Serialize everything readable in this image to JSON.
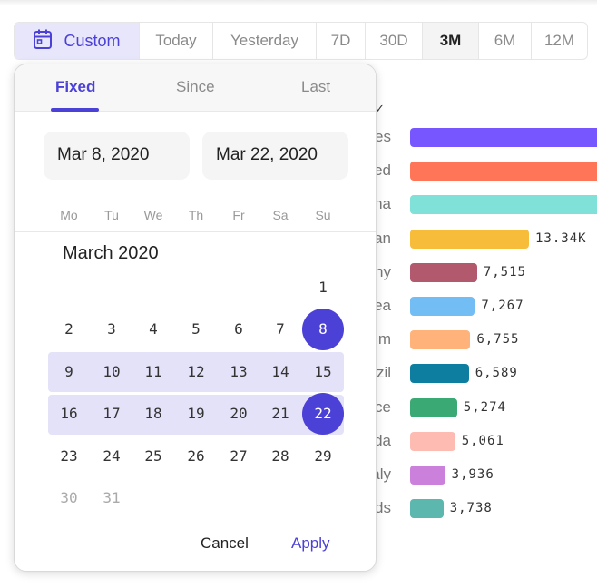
{
  "toolbar": {
    "custom_label": "Custom",
    "icon": "calendar-icon",
    "ranges": [
      {
        "label": "Today",
        "active": false
      },
      {
        "label": "Yesterday",
        "active": false
      },
      {
        "label": "7D",
        "active": false
      },
      {
        "label": "30D",
        "active": false
      },
      {
        "label": "3M",
        "active": true
      },
      {
        "label": "6M",
        "active": false
      },
      {
        "label": "12M",
        "active": false
      }
    ]
  },
  "chart_data": {
    "type": "bar",
    "orientation": "horizontal",
    "categories": [
      "…es",
      "…ed",
      "…na",
      "…an",
      "…ny",
      "…ea",
      "…m",
      "…zil",
      "…ce",
      "…da",
      "…aly",
      "…ds"
    ],
    "visible_label_fragments": [
      "es",
      "ed",
      "na",
      "an",
      "ny",
      "ea",
      "m",
      "zil",
      "ce",
      "da",
      "aly",
      "ds"
    ],
    "values": [
      null,
      null,
      null,
      13340,
      7515,
      7267,
      6755,
      6589,
      5274,
      5061,
      3936,
      3738
    ],
    "value_labels": [
      "",
      "",
      "",
      "13.34K",
      "7,515",
      "7,267",
      "6,755",
      "6,589",
      "5,274",
      "5,061",
      "3,936",
      "3,738"
    ],
    "colors": [
      "#7856ff",
      "#ff7557",
      "#80e1d9",
      "#f8bc3b",
      "#b2596e",
      "#72bef4",
      "#ffb27a",
      "#0d7ea0",
      "#3ba974",
      "#febbb2",
      "#cb80dc",
      "#5cb7af"
    ]
  },
  "picker": {
    "tabs": [
      "Fixed",
      "Since",
      "Last"
    ],
    "active_tab": "Fixed",
    "start_date": "Mar 8, 2020",
    "end_date": "Mar 22, 2020",
    "weekdays": [
      "Mo",
      "Tu",
      "We",
      "Th",
      "Fr",
      "Sa",
      "Su"
    ],
    "month_title": "March 2020",
    "weeks": [
      [
        null,
        null,
        null,
        null,
        null,
        null,
        "1"
      ],
      [
        "2",
        "3",
        "4",
        "5",
        "6",
        "7",
        "8"
      ],
      [
        "9",
        "10",
        "11",
        "12",
        "13",
        "14",
        "15"
      ],
      [
        "16",
        "17",
        "18",
        "19",
        "20",
        "21",
        "22"
      ],
      [
        "23",
        "24",
        "25",
        "26",
        "27",
        "28",
        "29"
      ],
      [
        "30",
        "31",
        null,
        null,
        null,
        null,
        null
      ]
    ],
    "selected": [
      "8",
      "22"
    ],
    "muted": [
      "30",
      "31"
    ],
    "cancel_label": "Cancel",
    "apply_label": "Apply",
    "accent": "#4b41d6"
  }
}
